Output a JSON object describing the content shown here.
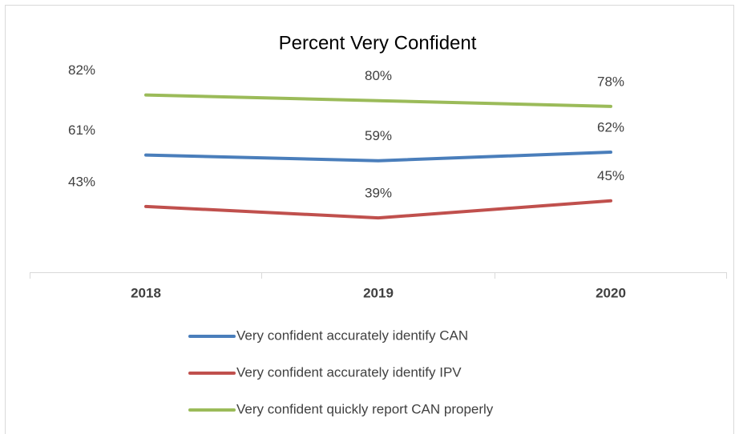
{
  "chart_data": {
    "type": "line",
    "title": "Percent  Very Confident",
    "categories": [
      "2018",
      "2019",
      "2020"
    ],
    "series": [
      {
        "name": "Very confident accurately identify CAN",
        "color": "#4a7ebb",
        "values": [
          61,
          59,
          62
        ],
        "value_labels": [
          "61%",
          "59%",
          "62%"
        ]
      },
      {
        "name": "Very confident accurately identify IPV",
        "color": "#c0504d",
        "values": [
          43,
          39,
          45
        ],
        "value_labels": [
          "43%",
          "39%",
          "45%"
        ]
      },
      {
        "name": "Very confident quickly report CAN properly",
        "color": "#9bbb59",
        "values": [
          82,
          80,
          78
        ],
        "value_labels": [
          "82%",
          "80%",
          "78%"
        ]
      }
    ],
    "ylim": [
      20,
      90
    ],
    "legend": "bottom"
  }
}
